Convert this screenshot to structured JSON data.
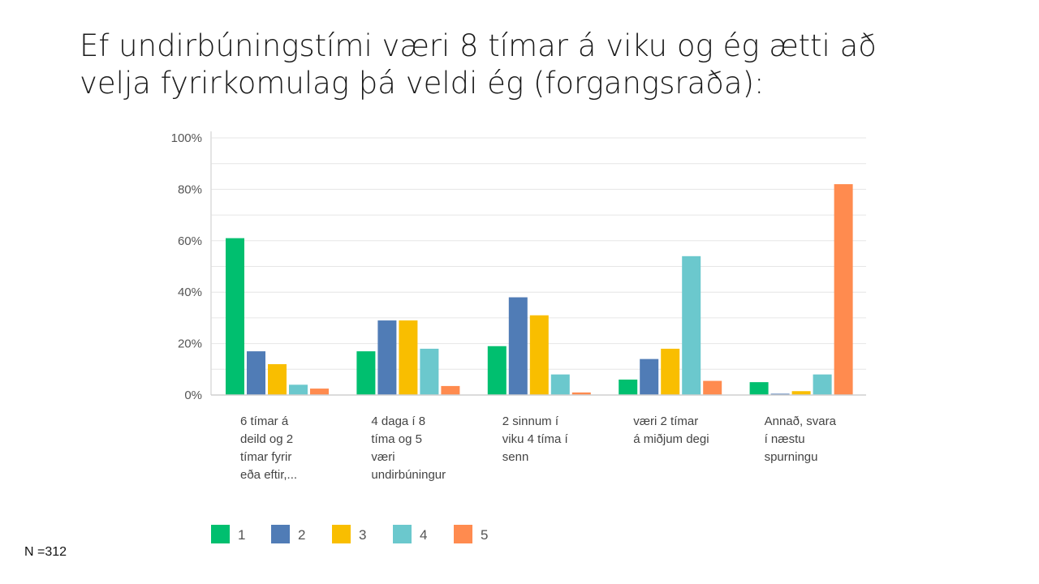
{
  "slide": {
    "title_line1": "Ef undirbúningstími væri 8 tímar á viku og ég ætti að",
    "title_line2": "velja fyrirkomulag þá veldi ég (forgangsraða):",
    "note": "N =312"
  },
  "chart_data": {
    "type": "bar",
    "title": "",
    "xlabel": "",
    "ylabel": "",
    "ylim": [
      0,
      100
    ],
    "grid": true,
    "legend_position": "bottom",
    "y_ticks": [
      "0%",
      "20%",
      "40%",
      "60%",
      "80%",
      "100%"
    ],
    "categories": [
      [
        "6 tímar á",
        "deild og 2",
        "tímar fyrir",
        "eða eftir,..."
      ],
      [
        "4 daga í 8",
        "tíma og 5",
        "væri",
        "undirbúningur"
      ],
      [
        "2 sinnum í",
        "viku 4 tíma í",
        "senn"
      ],
      [
        "væri 2 tímar",
        "á miðjum degi"
      ],
      [
        "Annað, svara",
        "í næstu",
        "spurningu"
      ]
    ],
    "series": [
      {
        "name": "1",
        "color": "#00bf6f",
        "values": [
          61,
          17,
          19,
          6,
          5
        ]
      },
      {
        "name": "2",
        "color": "#507cb6",
        "values": [
          17,
          29,
          38,
          14,
          0.5
        ]
      },
      {
        "name": "3",
        "color": "#f9be00",
        "values": [
          12,
          29,
          31,
          18,
          1.5
        ]
      },
      {
        "name": "4",
        "color": "#6bc8cd",
        "values": [
          4,
          18,
          8,
          54,
          8
        ]
      },
      {
        "name": "5",
        "color": "#ff8b4f",
        "values": [
          2.5,
          3.5,
          1,
          5.5,
          82
        ]
      }
    ]
  }
}
